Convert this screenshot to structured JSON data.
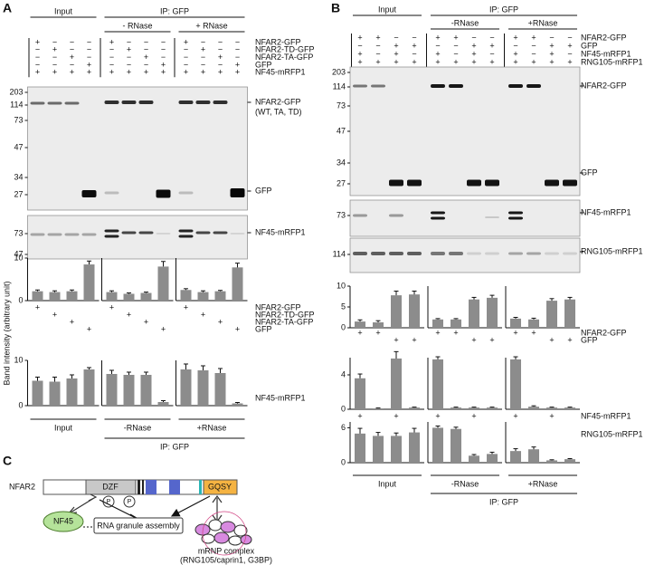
{
  "panel_a": {
    "letter": "A",
    "input": "Input",
    "ip": "IP: GFP",
    "minus_rnase": "- RNase",
    "plus_rnase": "+ RNase",
    "matrix": {
      "labels": [
        "NFAR2-GFP",
        "NFAR2-TD-GFP",
        "NFAR2-TA-GFP",
        "GFP",
        "NF45-mRFP1"
      ],
      "signs": [
        [
          "+",
          "−",
          "−",
          "−",
          "+",
          "−",
          "−",
          "−",
          "+",
          "−",
          "−",
          "−"
        ],
        [
          "−",
          "+",
          "−",
          "−",
          "−",
          "+",
          "−",
          "−",
          "−",
          "+",
          "−",
          "−"
        ],
        [
          "−",
          "−",
          "+",
          "−",
          "−",
          "−",
          "+",
          "−",
          "−",
          "−",
          "+",
          "−"
        ],
        [
          "−",
          "−",
          "−",
          "+",
          "−",
          "−",
          "−",
          "+",
          "−",
          "−",
          "−",
          "+"
        ],
        [
          "+",
          "+",
          "+",
          "+",
          "+",
          "+",
          "+",
          "+",
          "+",
          "+",
          "+",
          "+"
        ]
      ]
    },
    "blots": [
      {
        "markers": [
          203,
          114,
          73,
          47,
          34,
          27
        ],
        "labels": [
          "NFAR2-GFP",
          "(WT, TA, TD)",
          "GFP"
        ]
      },
      {
        "markers": [
          73,
          47
        ],
        "labels": [
          "NF45-mRFP1"
        ]
      }
    ],
    "y_axis_label": "Band intensity (arbitrary unit)",
    "charts": [
      {
        "ylim": [
          0,
          10
        ],
        "yticks": [
          0,
          10
        ],
        "values": [
          2.2,
          2.0,
          2.2,
          8.5,
          2.0,
          1.6,
          1.8,
          8.0,
          2.5,
          2.0,
          2.2,
          7.8
        ],
        "errors": [
          0.3,
          0.3,
          0.3,
          0.8,
          0.3,
          0.2,
          0.2,
          1.2,
          0.3,
          0.3,
          0.2,
          1.0
        ]
      },
      {
        "ylim": [
          0,
          10
        ],
        "yticks": [
          0,
          10
        ],
        "values": [
          5.5,
          5.3,
          6.0,
          8.0,
          7.0,
          6.8,
          6.8,
          0.8,
          8.0,
          7.8,
          7.2,
          0.5
        ],
        "errors": [
          0.8,
          1.0,
          0.8,
          0.4,
          0.8,
          0.6,
          0.6,
          0.3,
          1.2,
          1.0,
          1.0,
          0.2
        ],
        "label": "NF45-mRFP1"
      }
    ],
    "chart_signs": {
      "labels": [
        "NFAR2-GFP",
        "NFAR2-TD-GFP",
        "NFAR2-TA-GFP",
        "GFP"
      ],
      "signs": [
        [
          "+",
          null,
          null,
          null,
          "+",
          null,
          null,
          null,
          "+",
          null,
          null,
          null
        ],
        [
          null,
          "+",
          null,
          null,
          null,
          "+",
          null,
          null,
          null,
          "+",
          null,
          null
        ],
        [
          null,
          null,
          "+",
          null,
          null,
          null,
          "+",
          null,
          null,
          null,
          "+",
          null
        ],
        [
          null,
          null,
          null,
          "+",
          null,
          null,
          null,
          "+",
          null,
          null,
          null,
          "+"
        ]
      ]
    },
    "bottom": {
      "input": "Input",
      "minus_rnase": "-RNase",
      "plus_rnase": "+RNase",
      "ip": "IP: GFP"
    }
  },
  "panel_b": {
    "letter": "B",
    "input": "Input",
    "ip": "IP: GFP",
    "minus_rnase": "-RNase",
    "plus_rnase": "+RNase",
    "matrix": {
      "labels": [
        "NFAR2-GFP",
        "GFP",
        "NF45-mRFP1",
        "RNG105-mRFP1"
      ],
      "signs": [
        [
          "+",
          "+",
          "−",
          "−",
          "+",
          "+",
          "−",
          "−",
          "+",
          "+",
          "−",
          "−"
        ],
        [
          "−",
          "−",
          "+",
          "+",
          "−",
          "−",
          "+",
          "+",
          "−",
          "−",
          "+",
          "+"
        ],
        [
          "+",
          "−",
          "+",
          "−",
          "+",
          "−",
          "+",
          "−",
          "+",
          "−",
          "+",
          "−"
        ],
        [
          "+",
          "+",
          "+",
          "+",
          "+",
          "+",
          "+",
          "+",
          "+",
          "+",
          "+",
          "+"
        ]
      ]
    },
    "blots": [
      {
        "markers": [
          203,
          114,
          73,
          47,
          34,
          27
        ],
        "labels": [
          "NFAR2-GFP",
          "GFP"
        ]
      },
      {
        "markers": [
          73
        ],
        "labels": [
          "NF45-mRFP1"
        ]
      },
      {
        "markers": [
          114
        ],
        "labels": [
          "RNG105-mRFP1"
        ]
      }
    ],
    "charts": [
      {
        "ylim": [
          0,
          10
        ],
        "yticks": [
          0,
          5,
          10
        ],
        "values": [
          1.5,
          1.3,
          7.8,
          8.0,
          2.0,
          2.0,
          6.8,
          7.2,
          2.2,
          2.0,
          6.5,
          6.8
        ],
        "errors": [
          0.4,
          0.4,
          1.0,
          0.8,
          0.2,
          0.2,
          0.5,
          0.6,
          0.3,
          0.3,
          0.5,
          0.5
        ],
        "signs": {
          "labels": [
            "NFAR2-GFP",
            "GFP"
          ],
          "signs": [
            [
              "+",
              "+",
              null,
              null,
              "+",
              "+",
              null,
              null,
              "+",
              "+",
              null,
              null
            ],
            [
              null,
              null,
              "+",
              "+",
              null,
              null,
              "+",
              "+",
              null,
              null,
              "+",
              "+"
            ]
          ]
        }
      },
      {
        "ylim": [
          0,
          6
        ],
        "yticks": [
          0,
          4
        ],
        "values": [
          3.6,
          0.1,
          5.9,
          0.2,
          5.8,
          0.2,
          0.2,
          0.2,
          5.8,
          0.3,
          0.2,
          0.2
        ],
        "errors": [
          0.5,
          0.05,
          0.8,
          0.05,
          0.3,
          0.05,
          0.05,
          0.05,
          0.3,
          0.1,
          0.05,
          0.05
        ],
        "signs": {
          "labels": [
            "NF45-mRFP1"
          ],
          "signs": [
            [
              "+",
              null,
              "+",
              null,
              "+",
              null,
              "+",
              null,
              "+",
              null,
              "+",
              null
            ]
          ]
        }
      },
      {
        "ylim": [
          0,
          7
        ],
        "yticks": [
          0,
          6
        ],
        "values": [
          5.0,
          4.6,
          4.6,
          5.2,
          6.0,
          5.8,
          1.2,
          1.5,
          2.0,
          2.3,
          0.4,
          0.6
        ],
        "errors": [
          0.9,
          0.6,
          0.5,
          0.7,
          0.3,
          0.3,
          0.2,
          0.3,
          0.4,
          0.4,
          0.1,
          0.1
        ],
        "label": "RNG105-mRFP1"
      }
    ],
    "bottom": {
      "input": "Input",
      "minus_rnase": "-RNase",
      "plus_rnase": "+RNase",
      "ip": "IP: GFP"
    }
  },
  "panel_c": {
    "letter": "C",
    "protein": "NFAR2",
    "domains": [
      "DZF",
      "GQSY"
    ],
    "phospho": [
      "P",
      "P"
    ],
    "partner": "NF45",
    "process": "RNA granule assembly",
    "complex": "mRNP complex",
    "complex_detail": "(RNG105/caprin1, G3BP)"
  }
}
